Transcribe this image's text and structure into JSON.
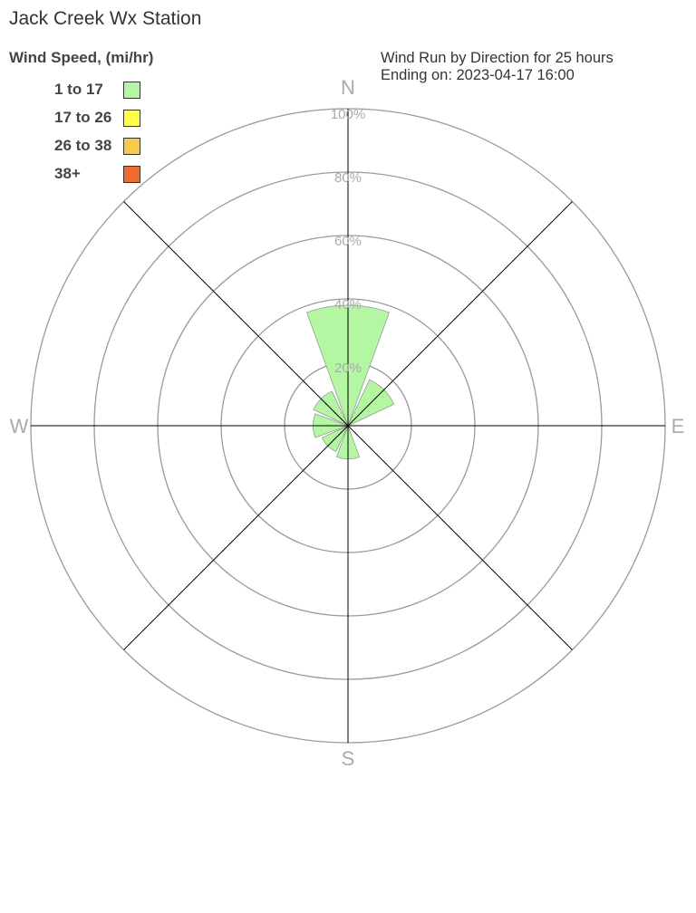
{
  "chart_data": {
    "type": "wind-rose",
    "title": "Jack Creek Wx Station",
    "subtitle_lines": [
      "Wind Run by Direction for 25 hours",
      "Ending on: 2023-04-17 16:00"
    ],
    "legend_title": "Wind Speed, (mi/hr)",
    "legend": [
      {
        "label": "1 to 17",
        "color": "#b3f7a3"
      },
      {
        "label": "17 to 26",
        "color": "#ffff4d"
      },
      {
        "label": "26 to 38",
        "color": "#f7cb45"
      },
      {
        "label": "38+",
        "color": "#ee6c2d"
      }
    ],
    "radial_ticks": [
      "20%",
      "40%",
      "60%",
      "80%",
      "100%"
    ],
    "radial_values": [
      20,
      40,
      60,
      80,
      100
    ],
    "rmax": 100,
    "compass_labels": {
      "N": "N",
      "E": "E",
      "S": "S",
      "W": "W"
    },
    "directions": [
      "N",
      "NE",
      "E",
      "SE",
      "S",
      "SW",
      "W",
      "NW"
    ],
    "series": [
      {
        "name": "1 to 17",
        "values": [
          38,
          16,
          0,
          0,
          10.5,
          9,
          11,
          12
        ]
      },
      {
        "name": "17 to 26",
        "values": [
          0,
          0,
          0,
          0,
          0,
          0,
          0,
          0
        ]
      },
      {
        "name": "26 to 38",
        "values": [
          0,
          0,
          0,
          0,
          0,
          0,
          0,
          0
        ]
      },
      {
        "name": "38+",
        "values": [
          0,
          0,
          0,
          0,
          0,
          0,
          0,
          0
        ]
      }
    ],
    "colors": {
      "ring": "#9a9a9a",
      "spoke": "#000000",
      "label": "#aaaaaa"
    }
  }
}
